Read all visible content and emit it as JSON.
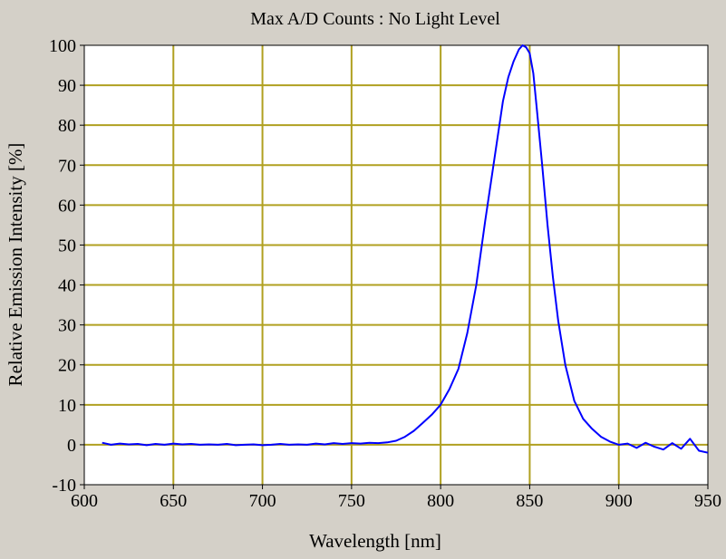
{
  "chart_data": {
    "type": "line",
    "title": "Max A/D Counts : No Light Level",
    "xlabel": "Wavelength [nm]",
    "ylabel": "Relative Emission Intensity [%]",
    "xlim": [
      600,
      950
    ],
    "ylim": [
      -10,
      100
    ],
    "xticks": [
      "600",
      "650",
      "700",
      "750",
      "800",
      "850",
      "900",
      "950"
    ],
    "yticks": [
      "-10",
      "0",
      "10",
      "20",
      "30",
      "40",
      "50",
      "60",
      "70",
      "80",
      "90",
      "100"
    ],
    "grid": true,
    "series": [
      {
        "name": "Relative Emission Intensity",
        "x": [
          610,
          615,
          620,
          625,
          630,
          635,
          640,
          645,
          650,
          655,
          660,
          665,
          670,
          675,
          680,
          685,
          690,
          695,
          700,
          705,
          710,
          715,
          720,
          725,
          730,
          735,
          740,
          745,
          750,
          755,
          760,
          765,
          770,
          775,
          780,
          785,
          790,
          795,
          800,
          805,
          810,
          815,
          820,
          825,
          830,
          835,
          838,
          841,
          844,
          846,
          848,
          850,
          852,
          854,
          857,
          860,
          863,
          866,
          870,
          875,
          880,
          885,
          890,
          895,
          900,
          905,
          910,
          915,
          920,
          925,
          930,
          935,
          940,
          945,
          950
        ],
        "y": [
          0.5,
          0.0,
          0.3,
          0.1,
          0.2,
          -0.1,
          0.2,
          0.0,
          0.3,
          0.1,
          0.2,
          0.0,
          0.1,
          0.0,
          0.2,
          -0.1,
          0.0,
          0.1,
          -0.1,
          0.0,
          0.2,
          0.0,
          0.1,
          0.0,
          0.3,
          0.1,
          0.4,
          0.2,
          0.4,
          0.3,
          0.5,
          0.4,
          0.6,
          1.0,
          2.0,
          3.5,
          5.5,
          7.5,
          10.0,
          14.0,
          19.0,
          28.0,
          40.0,
          56.0,
          71.0,
          86.0,
          92.0,
          96.0,
          99.0,
          100.0,
          99.5,
          98.0,
          93.0,
          84.0,
          70.0,
          55.0,
          42.0,
          31.0,
          20.0,
          11.0,
          6.5,
          4.0,
          2.0,
          0.8,
          0.0,
          0.3,
          -0.8,
          0.5,
          -0.5,
          -1.2,
          0.4,
          -1.0,
          1.5,
          -1.5,
          -2.0
        ],
        "color": "#0000ff"
      }
    ],
    "colors": {
      "plot_background": "#ffffff",
      "panel_background": "#d4d0c8",
      "grid": "#b0a020",
      "line": "#0000ff",
      "axis": "#000000"
    }
  }
}
